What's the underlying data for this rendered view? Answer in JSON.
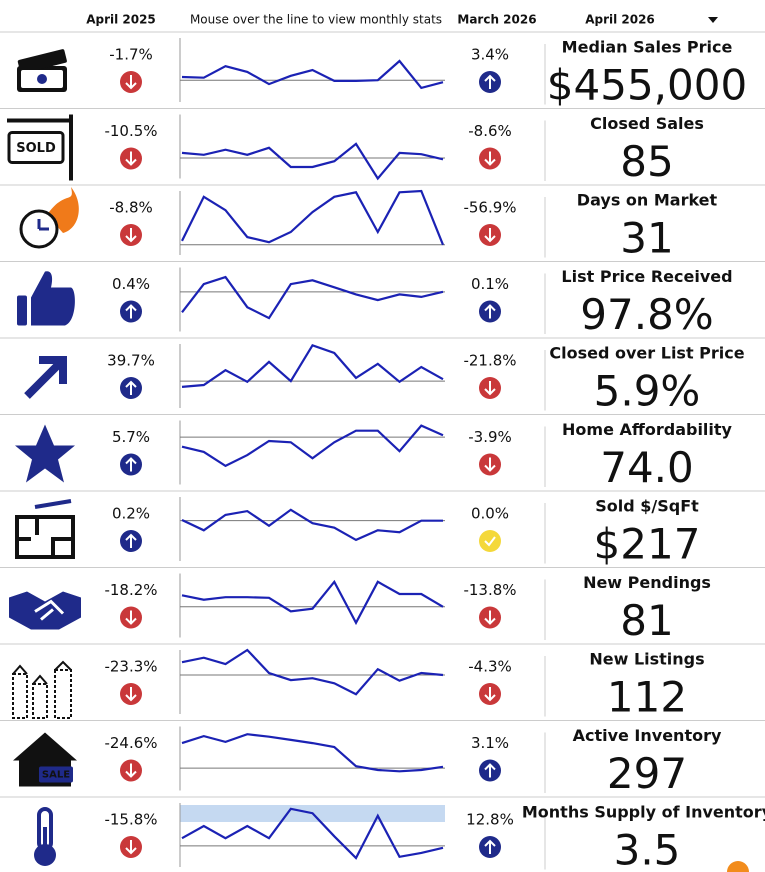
{
  "header": {
    "col1": "April 2025",
    "col2": "Mouse over the line to view monthly stats",
    "col3": "March 2026",
    "col4": "April 2026"
  },
  "rows": [
    {
      "metric": "Median Sales Price",
      "value": "$455,000",
      "yoy": {
        "label": "-1.7%",
        "trend": "down"
      },
      "mom": {
        "label": "3.4%",
        "trend": "up"
      },
      "sparkline": {
        "ylim": [
          0,
          100
        ],
        "values": [
          39,
          38,
          56,
          47,
          28,
          41,
          50,
          33,
          33,
          34,
          64,
          22,
          31
        ],
        "baseline": 34
      }
    },
    {
      "metric": "Closed Sales",
      "value": "85",
      "icon_text": "SOLD",
      "yoy": {
        "label": "-10.5%",
        "trend": "down"
      },
      "mom": {
        "label": "-8.6%",
        "trend": "down"
      },
      "sparkline": {
        "ylim": [
          0,
          100
        ],
        "values": [
          40,
          37,
          45,
          37,
          48,
          18,
          18,
          27,
          54,
          0,
          40,
          38,
          30
        ],
        "baseline": 32
      }
    },
    {
      "metric": "Days on Market",
      "value": "31",
      "yoy": {
        "label": "-8.8%",
        "trend": "down"
      },
      "mom": {
        "label": "-56.9%",
        "trend": "down"
      },
      "sparkline": {
        "ylim": [
          0,
          100
        ],
        "values": [
          22,
          91,
          70,
          28,
          20,
          36,
          67,
          91,
          98,
          36,
          98,
          100,
          16
        ],
        "baseline": 16
      }
    },
    {
      "metric": "List Price Received",
      "value": "97.8%",
      "yoy": {
        "label": "0.4%",
        "trend": "up"
      },
      "mom": {
        "label": "0.1%",
        "trend": "up"
      },
      "sparkline": {
        "ylim": [
          0,
          100
        ],
        "values": [
          30,
          74,
          85,
          38,
          21,
          74,
          80,
          69,
          58,
          49,
          58,
          54,
          62
        ],
        "baseline": 62
      }
    },
    {
      "metric": "Closed over List Price",
      "value": "5.9%",
      "yoy": {
        "label": "39.7%",
        "trend": "up"
      },
      "mom": {
        "label": "-21.8%",
        "trend": "down"
      },
      "sparkline": {
        "ylim": [
          0,
          100
        ],
        "values": [
          33,
          36,
          59,
          41,
          72,
          42,
          98,
          86,
          47,
          69,
          41,
          64,
          45
        ],
        "baseline": 42
      }
    },
    {
      "metric": "Home Affordability",
      "value": "74.0",
      "yoy": {
        "label": "5.7%",
        "trend": "up"
      },
      "mom": {
        "label": "-3.9%",
        "trend": "down"
      },
      "sparkline": {
        "ylim": [
          0,
          100
        ],
        "values": [
          59,
          51,
          29,
          46,
          68,
          66,
          41,
          66,
          84,
          84,
          52,
          92,
          77
        ],
        "baseline": 74
      }
    },
    {
      "metric": "Sold $/SqFt",
      "value": "$217",
      "yoy": {
        "label": "0.2%",
        "trend": "up"
      },
      "mom": {
        "label": "0.0%",
        "trend": "flat"
      },
      "sparkline": {
        "ylim": [
          0,
          100
        ],
        "values": [
          64,
          48,
          72,
          78,
          55,
          80,
          59,
          52,
          33,
          48,
          45,
          63,
          63
        ],
        "baseline": 63
      }
    },
    {
      "metric": "New Pendings",
      "value": "81",
      "yoy": {
        "label": "-18.2%",
        "trend": "down"
      },
      "mom": {
        "label": "-13.8%",
        "trend": "down"
      },
      "sparkline": {
        "ylim": [
          0,
          100
        ],
        "values": [
          66,
          59,
          63,
          63,
          62,
          41,
          45,
          87,
          23,
          87,
          68,
          68,
          48
        ],
        "baseline": 48
      }
    },
    {
      "metric": "New Listings",
      "value": "112",
      "yoy": {
        "label": "-23.3%",
        "trend": "down"
      },
      "mom": {
        "label": "-4.3%",
        "trend": "down"
      },
      "sparkline": {
        "ylim": [
          0,
          100
        ],
        "values": [
          81,
          88,
          78,
          100,
          64,
          53,
          56,
          48,
          31,
          70,
          52,
          64,
          61
        ],
        "baseline": 61
      }
    },
    {
      "metric": "Active Inventory",
      "value": "297",
      "icon_text": "SALE",
      "yoy": {
        "label": "-24.6%",
        "trend": "down"
      },
      "mom": {
        "label": "3.1%",
        "trend": "up"
      },
      "sparkline": {
        "ylim": [
          0,
          100
        ],
        "values": [
          74,
          85,
          76,
          88,
          84,
          79,
          74,
          68,
          38,
          32,
          30,
          32,
          37
        ],
        "baseline": 35
      }
    },
    {
      "metric": "Months Supply of Inventory",
      "value": "3.5",
      "yoy": {
        "label": "-15.8%",
        "trend": "down"
      },
      "mom": {
        "label": "12.8%",
        "trend": "up"
      },
      "sparkline": {
        "ylim": [
          0,
          100
        ],
        "values": [
          45,
          64,
          45,
          64,
          45,
          91,
          84,
          48,
          14,
          80,
          16,
          22,
          30
        ],
        "baseline": 33
      }
    }
  ]
}
